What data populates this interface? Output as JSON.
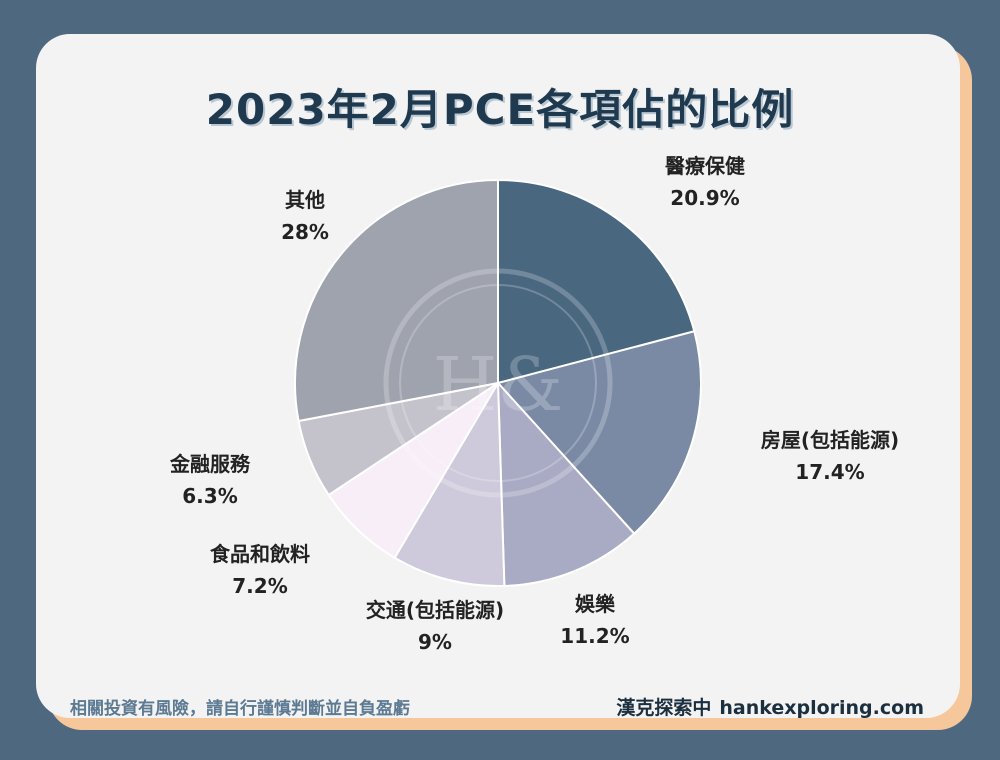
{
  "title": "2023年2月PCE各項佔的比例",
  "chart_data": {
    "type": "pie",
    "title": "2023年2月PCE各項佔的比例",
    "slices": [
      {
        "label": "醫療保健",
        "value": 20.9,
        "value_text": "20.9%",
        "color": "#4a6780"
      },
      {
        "label": "房屋(包括能源)",
        "value": 17.4,
        "value_text": "17.4%",
        "color": "#7a8aa5"
      },
      {
        "label": "娛樂",
        "value": 11.2,
        "value_text": "11.2%",
        "color": "#a9abc5"
      },
      {
        "label": "交通(包括能源)",
        "value": 9,
        "value_text": "9%",
        "color": "#cfc9dc"
      },
      {
        "label": "食品和飲料",
        "value": 7.2,
        "value_text": "7.2%",
        "color": "#f8eef8"
      },
      {
        "label": "金融服務",
        "value": 6.3,
        "value_text": "6.3%",
        "color": "#c4c3cc"
      },
      {
        "label": "其他",
        "value": 28,
        "value_text": "28%",
        "color": "#9fa3ae"
      }
    ]
  },
  "watermark": "H&",
  "footer": {
    "disclaimer": "相關投資有風險，請自行謹慎判斷並自負盈虧",
    "brand": "漢克探索中",
    "site": "hankexploring.com"
  },
  "colors": {
    "background": "#4e6880",
    "card": "#f3f3f3",
    "card_shadow": "#f5c79a",
    "title": "#1f3a4f"
  }
}
